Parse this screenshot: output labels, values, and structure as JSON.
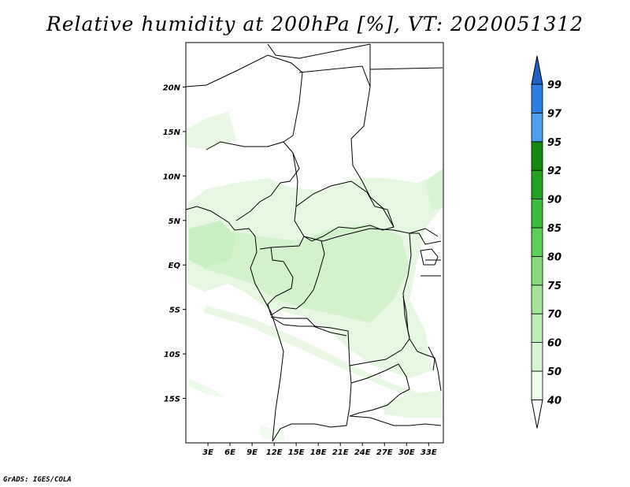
{
  "title": "Relative humidity at 200hPa [%], VT: 2020051312",
  "map": {
    "lat_labels": [
      "20N",
      "15N",
      "10N",
      "5N",
      "EQ",
      "5S",
      "10S",
      "15S"
    ],
    "lat_values": [
      20,
      15,
      10,
      5,
      0,
      -5,
      -10,
      -15
    ],
    "lon_labels": [
      "3E",
      "6E",
      "9E",
      "12E",
      "15E",
      "18E",
      "21E",
      "24E",
      "27E",
      "30E",
      "33E"
    ],
    "lon_values": [
      3,
      6,
      9,
      12,
      15,
      18,
      21,
      24,
      27,
      30,
      33
    ],
    "lon_range": [
      0,
      35
    ],
    "lat_range": [
      -20,
      25
    ]
  },
  "colorbar": {
    "labels": [
      "40",
      "50",
      "60",
      "70",
      "75",
      "80",
      "85",
      "90",
      "92",
      "95",
      "97",
      "99"
    ],
    "levels": [
      40,
      50,
      60,
      70,
      75,
      80,
      85,
      90,
      92,
      95,
      97,
      99
    ],
    "colors": [
      "#ffffff",
      "#eafbe8",
      "#d8f5d3",
      "#bdedb6",
      "#a2e597",
      "#84db78",
      "#5ccf56",
      "#3dbb3d",
      "#22a322",
      "#128a12",
      "#4a9ef0",
      "#2b7fe6",
      "#1e64c8"
    ]
  },
  "credit": "GrADS: IGES/COLA"
}
